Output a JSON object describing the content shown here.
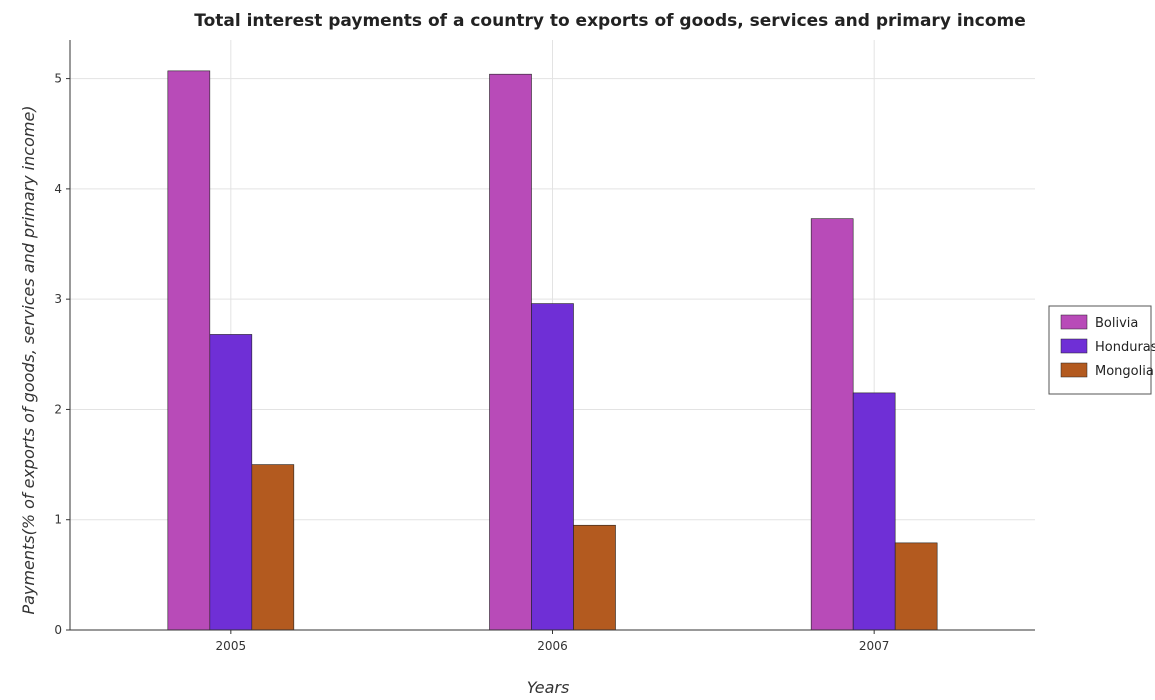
{
  "chart_data": {
    "type": "bar",
    "title": "Total interest payments of a country to exports of goods, services and primary income",
    "xlabel": "Years",
    "ylabel": "Payments(% of exports of goods, services and primary income)",
    "categories": [
      "2005",
      "2006",
      "2007"
    ],
    "series": [
      {
        "name": "Bolivia",
        "color": "#b84bb8",
        "values": [
          5.07,
          5.04,
          3.73
        ]
      },
      {
        "name": "Honduras",
        "color": "#6f2fd6",
        "values": [
          2.68,
          2.96,
          2.15
        ]
      },
      {
        "name": "Mongolia",
        "color": "#b35a1f",
        "values": [
          1.5,
          0.95,
          0.79
        ]
      }
    ],
    "ylim": [
      0,
      5.35
    ],
    "yticks": [
      0,
      1,
      2,
      3,
      4,
      5
    ],
    "grid": true,
    "legend_position": "right"
  }
}
